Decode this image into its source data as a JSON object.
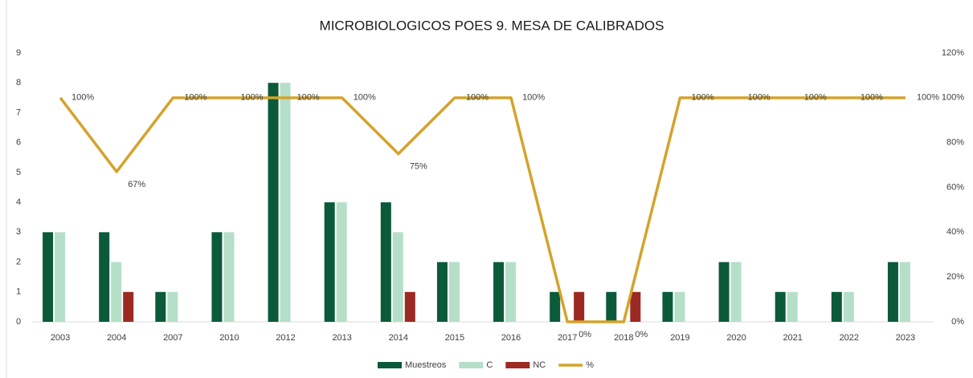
{
  "chart_data": {
    "type": "bar-line",
    "title": "MICROBIOLOGICOS POES 9. MESA DE CALIBRADOS",
    "categories": [
      "2003",
      "2004",
      "2007",
      "2010",
      "2012",
      "2013",
      "2014",
      "2015",
      "2016",
      "2017",
      "2018",
      "2019",
      "2020",
      "2021",
      "2022",
      "2023"
    ],
    "series": [
      {
        "name": "Muestreos",
        "color": "#0b5a3a",
        "values": [
          3,
          3,
          1,
          3,
          8,
          4,
          4,
          2,
          2,
          1,
          1,
          1,
          2,
          1,
          1,
          2
        ]
      },
      {
        "name": "C",
        "color": "#b5dfc8",
        "values": [
          3,
          2,
          1,
          3,
          8,
          4,
          3,
          2,
          2,
          0,
          0,
          1,
          2,
          1,
          1,
          2
        ]
      },
      {
        "name": "NC",
        "color": "#9c2a22",
        "values": [
          0,
          1,
          0,
          0,
          0,
          0,
          1,
          0,
          0,
          1,
          1,
          0,
          0,
          0,
          0,
          0
        ]
      },
      {
        "name": "%",
        "color": "#d4a32c",
        "type": "line",
        "axis": "y2",
        "values": [
          100,
          67,
          100,
          100,
          100,
          100,
          75,
          100,
          100,
          0,
          0,
          100,
          100,
          100,
          100,
          100
        ],
        "value_labels": [
          "100%",
          "67%",
          "100%",
          "100%",
          "100%",
          "100%",
          "75%",
          "100%",
          "100%",
          "0%",
          "0%",
          "100%",
          "100%",
          "100%",
          "100%",
          "100%"
        ]
      }
    ],
    "ylim": [
      0,
      9
    ],
    "yticks": [
      0,
      1,
      2,
      3,
      4,
      5,
      6,
      7,
      8,
      9
    ],
    "y2lim": [
      0,
      120
    ],
    "y2ticks": [
      {
        "value": 0,
        "label": "0%"
      },
      {
        "value": 20,
        "label": "20%"
      },
      {
        "value": 40,
        "label": "40%"
      },
      {
        "value": 60,
        "label": "60%"
      },
      {
        "value": 80,
        "label": "80%"
      },
      {
        "value": 100,
        "label": "100%"
      },
      {
        "value": 120,
        "label": "120%"
      }
    ],
    "grid": false,
    "legend": "bottom"
  }
}
